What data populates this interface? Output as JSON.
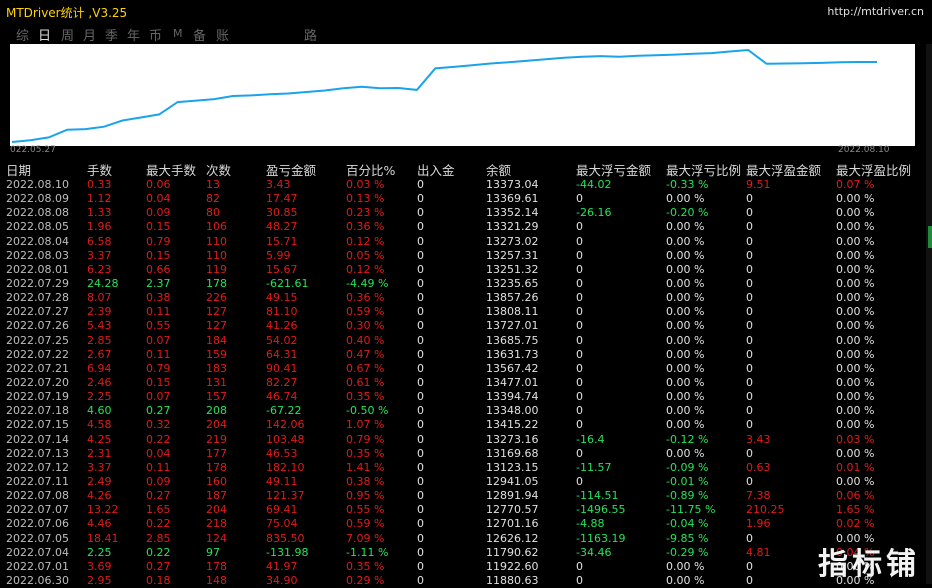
{
  "app": {
    "title": "MTDriver统计  ,V3.25",
    "url": "http://mtdriver.cn"
  },
  "tabs": [
    {
      "label": "综",
      "active": false
    },
    {
      "label": "日",
      "active": true
    },
    {
      "label": "周",
      "active": false
    },
    {
      "label": "月",
      "active": false
    },
    {
      "label": "季",
      "active": false
    },
    {
      "label": "年",
      "active": false
    },
    {
      "label": "币",
      "active": false
    },
    {
      "label": "M",
      "active": false
    },
    {
      "label": "备",
      "active": false
    },
    {
      "label": "账户",
      "active": false
    },
    {
      "label": "路径",
      "active": false
    }
  ],
  "chart_data": {
    "type": "line",
    "x_start_label": "022.05.27",
    "x_end_label": "2022.08.10",
    "color": "#1aa3e8",
    "values": [
      11200,
      11260,
      11350,
      11600,
      11620,
      11700,
      11900,
      12000,
      12100,
      12500,
      12550,
      12600,
      12700,
      12720,
      12760,
      12780,
      12830,
      12880,
      12950,
      13000,
      12950,
      12960,
      12900,
      13600,
      13650,
      13700,
      13760,
      13800,
      13850,
      13900,
      13950,
      13980,
      14000,
      13980,
      14010,
      14030,
      14050,
      14080,
      14100,
      14150,
      14200,
      13750,
      13760,
      13770,
      13780,
      13800,
      13810,
      13810
    ]
  },
  "table": {
    "headers": [
      "日期",
      "手数",
      "最大手数",
      "次数",
      "盈亏金额",
      "百分比%",
      "出入金",
      "余额",
      "最大浮亏金额",
      "最大浮亏比例",
      "最大浮盈金额",
      "最大浮盈比例"
    ],
    "rows": [
      [
        "2022.08.10",
        "0.33",
        "0.06",
        "13",
        "3.43",
        "0.03 %",
        "0",
        "13373.04",
        "-44.02",
        "-0.33 %",
        "9.51",
        "0.07 %"
      ],
      [
        "2022.08.09",
        "1.12",
        "0.04",
        "82",
        "17.47",
        "0.13 %",
        "0",
        "13369.61",
        "0",
        "0.00 %",
        "0",
        "0.00 %"
      ],
      [
        "2022.08.08",
        "1.33",
        "0.09",
        "80",
        "30.85",
        "0.23 %",
        "0",
        "13352.14",
        "-26.16",
        "-0.20 %",
        "0",
        "0.00 %"
      ],
      [
        "2022.08.05",
        "1.96",
        "0.15",
        "106",
        "48.27",
        "0.36 %",
        "0",
        "13321.29",
        "0",
        "0.00 %",
        "0",
        "0.00 %"
      ],
      [
        "2022.08.04",
        "6.58",
        "0.79",
        "110",
        "15.71",
        "0.12 %",
        "0",
        "13273.02",
        "0",
        "0.00 %",
        "0",
        "0.00 %"
      ],
      [
        "2022.08.03",
        "3.37",
        "0.15",
        "110",
        "5.99",
        "0.05 %",
        "0",
        "13257.31",
        "0",
        "0.00 %",
        "0",
        "0.00 %"
      ],
      [
        "2022.08.01",
        "6.23",
        "0.66",
        "119",
        "15.67",
        "0.12 %",
        "0",
        "13251.32",
        "0",
        "0.00 %",
        "0",
        "0.00 %"
      ],
      [
        "2022.07.29",
        "24.28",
        "2.37",
        "178",
        "-621.61",
        "-4.49 %",
        "0",
        "13235.65",
        "0",
        "0.00 %",
        "0",
        "0.00 %"
      ],
      [
        "2022.07.28",
        "8.07",
        "0.38",
        "226",
        "49.15",
        "0.36 %",
        "0",
        "13857.26",
        "0",
        "0.00 %",
        "0",
        "0.00 %"
      ],
      [
        "2022.07.27",
        "2.39",
        "0.11",
        "127",
        "81.10",
        "0.59 %",
        "0",
        "13808.11",
        "0",
        "0.00 %",
        "0",
        "0.00 %"
      ],
      [
        "2022.07.26",
        "5.43",
        "0.55",
        "127",
        "41.26",
        "0.30 %",
        "0",
        "13727.01",
        "0",
        "0.00 %",
        "0",
        "0.00 %"
      ],
      [
        "2022.07.25",
        "2.85",
        "0.07",
        "184",
        "54.02",
        "0.40 %",
        "0",
        "13685.75",
        "0",
        "0.00 %",
        "0",
        "0.00 %"
      ],
      [
        "2022.07.22",
        "2.67",
        "0.11",
        "159",
        "64.31",
        "0.47 %",
        "0",
        "13631.73",
        "0",
        "0.00 %",
        "0",
        "0.00 %"
      ],
      [
        "2022.07.21",
        "6.94",
        "0.79",
        "183",
        "90.41",
        "0.67 %",
        "0",
        "13567.42",
        "0",
        "0.00 %",
        "0",
        "0.00 %"
      ],
      [
        "2022.07.20",
        "2.46",
        "0.15",
        "131",
        "82.27",
        "0.61 %",
        "0",
        "13477.01",
        "0",
        "0.00 %",
        "0",
        "0.00 %"
      ],
      [
        "2022.07.19",
        "2.25",
        "0.07",
        "157",
        "46.74",
        "0.35 %",
        "0",
        "13394.74",
        "0",
        "0.00 %",
        "0",
        "0.00 %"
      ],
      [
        "2022.07.18",
        "4.60",
        "0.27",
        "208",
        "-67.22",
        "-0.50 %",
        "0",
        "13348.00",
        "0",
        "0.00 %",
        "0",
        "0.00 %"
      ],
      [
        "2022.07.15",
        "4.58",
        "0.32",
        "204",
        "142.06",
        "1.07 %",
        "0",
        "13415.22",
        "0",
        "0.00 %",
        "0",
        "0.00 %"
      ],
      [
        "2022.07.14",
        "4.25",
        "0.22",
        "219",
        "103.48",
        "0.79 %",
        "0",
        "13273.16",
        "-16.4",
        "-0.12 %",
        "3.43",
        "0.03 %"
      ],
      [
        "2022.07.13",
        "2.31",
        "0.04",
        "177",
        "46.53",
        "0.35 %",
        "0",
        "13169.68",
        "0",
        "0.00 %",
        "0",
        "0.00 %"
      ],
      [
        "2022.07.12",
        "3.37",
        "0.11",
        "178",
        "182.10",
        "1.41 %",
        "0",
        "13123.15",
        "-11.57",
        "-0.09 %",
        "0.63",
        "0.01 %"
      ],
      [
        "2022.07.11",
        "2.49",
        "0.09",
        "160",
        "49.11",
        "0.38 %",
        "0",
        "12941.05",
        "0",
        "-0.01 %",
        "0",
        "0.00 %"
      ],
      [
        "2022.07.08",
        "4.26",
        "0.27",
        "187",
        "121.37",
        "0.95 %",
        "0",
        "12891.94",
        "-114.51",
        "-0.89 %",
        "7.38",
        "0.06 %"
      ],
      [
        "2022.07.07",
        "13.22",
        "1.65",
        "204",
        "69.41",
        "0.55 %",
        "0",
        "12770.57",
        "-1496.55",
        "-11.75 %",
        "210.25",
        "1.65 %"
      ],
      [
        "2022.07.06",
        "4.46",
        "0.22",
        "218",
        "75.04",
        "0.59 %",
        "0",
        "12701.16",
        "-4.88",
        "-0.04 %",
        "1.96",
        "0.02 %"
      ],
      [
        "2022.07.05",
        "18.41",
        "2.85",
        "124",
        "835.50",
        "7.09 %",
        "0",
        "12626.12",
        "-1163.19",
        "-9.85 %",
        "0",
        "0.00 %"
      ],
      [
        "2022.07.04",
        "2.25",
        "0.22",
        "97",
        "-131.98",
        "-1.11 %",
        "0",
        "11790.62",
        "-34.46",
        "-0.29 %",
        "4.81",
        "0.04 %"
      ],
      [
        "2022.07.01",
        "3.69",
        "0.27",
        "178",
        "41.97",
        "0.35 %",
        "0",
        "11922.60",
        "0",
        "0.00 %",
        "0",
        "0.00 %"
      ],
      [
        "2022.06.30",
        "2.95",
        "0.18",
        "148",
        "34.90",
        "0.29 %",
        "0",
        "11880.63",
        "0",
        "0.00 %",
        "0",
        "0.00 %"
      ]
    ]
  },
  "watermark": "指标铺"
}
